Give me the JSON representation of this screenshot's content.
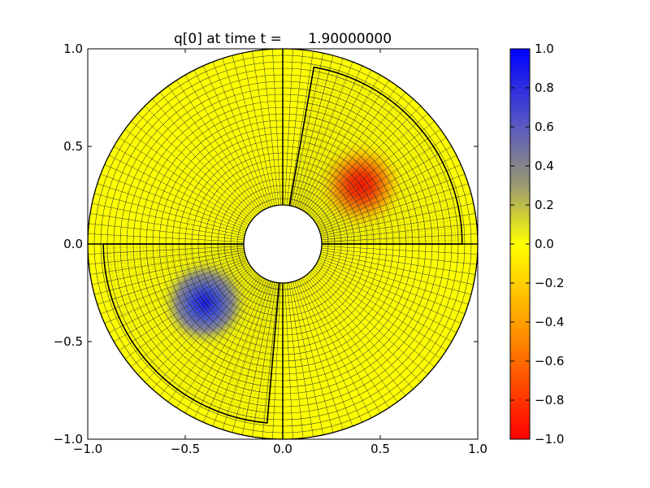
{
  "chart_data": {
    "type": "heatmap",
    "title": "q[0] at time t =      1.90000000",
    "xlabel": "",
    "ylabel": "",
    "xlim": [
      -1.0,
      1.0
    ],
    "ylim": [
      -1.0,
      1.0
    ],
    "x_ticks": [
      -1.0,
      -0.5,
      0.0,
      0.5,
      1.0
    ],
    "x_tick_labels": [
      "−1.0",
      "−0.5",
      "0.0",
      "0.5",
      "1.0"
    ],
    "y_ticks": [
      -1.0,
      -0.5,
      0.0,
      0.5,
      1.0
    ],
    "y_tick_labels": [
      "−1.0",
      "−0.5",
      "0.0",
      "0.5",
      "1.0"
    ],
    "domain": {
      "shape": "annulus",
      "inner_radius": 0.2,
      "outer_radius": 1.0,
      "patch_boundaries": [
        "x-axis",
        "y-axis"
      ],
      "refined_patches": [
        {
          "r_range": [
            0.2,
            0.92
          ],
          "theta_deg": [
            0,
            80
          ]
        },
        {
          "r_range": [
            0.2,
            0.92
          ],
          "theta_deg": [
            180,
            265
          ]
        }
      ]
    },
    "features": [
      {
        "x": 0.4,
        "y": 0.3,
        "value": -1.0
      },
      {
        "x": -0.4,
        "y": -0.3,
        "value": 1.0
      }
    ],
    "colorbar": {
      "range": [
        -1.0,
        1.0
      ],
      "ticks": [
        1.0,
        0.8,
        0.6,
        0.4,
        0.2,
        0.0,
        -0.2,
        -0.4,
        -0.6,
        -0.8,
        -1.0
      ],
      "tick_labels": [
        "1.0",
        "0.8",
        "0.6",
        "0.4",
        "0.2",
        "0.0",
        "−0.2",
        "−0.4",
        "−0.6",
        "−0.8",
        "−1.0"
      ],
      "colors": {
        "low": "#ff0000",
        "mid_low": "#ff9900",
        "zero": "#ffff00",
        "mid_high": "#a0a030",
        "high": "#0000ff"
      }
    },
    "grid": false,
    "legend": "none"
  }
}
